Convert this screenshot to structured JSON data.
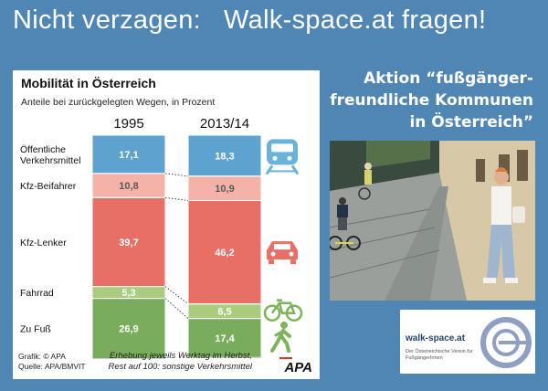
{
  "headline": "Nicht verzagen:   Walk-space.at fragen!",
  "campaign": "Aktion “fußgänger-freundliche Kommunen in Österreich”",
  "colors": {
    "background": "#4f86b3",
    "oepnv": "#5ea3cf",
    "kfz_beifahrer": "#f4b2a8",
    "kfz_lenker": "#e86f66",
    "fahrrad": "#a9cc7e",
    "zu_fuss": "#79ad5b",
    "icon": "#69b3da",
    "icon_car": "#e86f66",
    "icon_green": "#7cb45a"
  },
  "chart_data": {
    "type": "bar",
    "stacked": true,
    "title": "Mobilität in Österreich",
    "subtitle": "Anteile bei zurückgelegten Wegen, in Prozent",
    "categories": [
      "1995",
      "2013/14"
    ],
    "series": [
      {
        "name": "Öffentliche Verkehrsmittel",
        "label_lines": [
          "Öffentliche",
          "Verkehrsmittel"
        ],
        "values": [
          17.1,
          18.3
        ],
        "labels": [
          "17,1",
          "18,3"
        ],
        "icon": "train-icon"
      },
      {
        "name": "Kfz-Beifahrer",
        "label_lines": [
          "Kfz-Beifahrer"
        ],
        "values": [
          10.8,
          10.9
        ],
        "labels": [
          "10,8",
          "10,9"
        ],
        "icon": ""
      },
      {
        "name": "Kfz-Lenker",
        "label_lines": [
          "Kfz-Lenker"
        ],
        "values": [
          39.7,
          46.2
        ],
        "labels": [
          "39,7",
          "46,2"
        ],
        "icon": "car-icon"
      },
      {
        "name": "Fahrrad",
        "label_lines": [
          "Fahrrad"
        ],
        "values": [
          5.3,
          6.5
        ],
        "labels": [
          "5,3",
          "6,5"
        ],
        "icon": "bicycle-icon"
      },
      {
        "name": "Zu Fuß",
        "label_lines": [
          "Zu Fuß"
        ],
        "values": [
          26.9,
          17.4
        ],
        "labels": [
          "26,9",
          "17,4"
        ],
        "icon": "pedestrian-icon"
      }
    ],
    "source_lines": [
      "Grafik: © APA",
      "Quelle: APA/BMVIT"
    ],
    "footnote_lines": [
      "Erhebung jeweils Werktag im Herbst,",
      "Rest auf 100: sonstige Verkehrsmittel"
    ],
    "agency": "APA"
  },
  "logo": {
    "name": "walk-space.at",
    "subtitle": "Der Österreichische Verein für FußgängerInnen"
  }
}
